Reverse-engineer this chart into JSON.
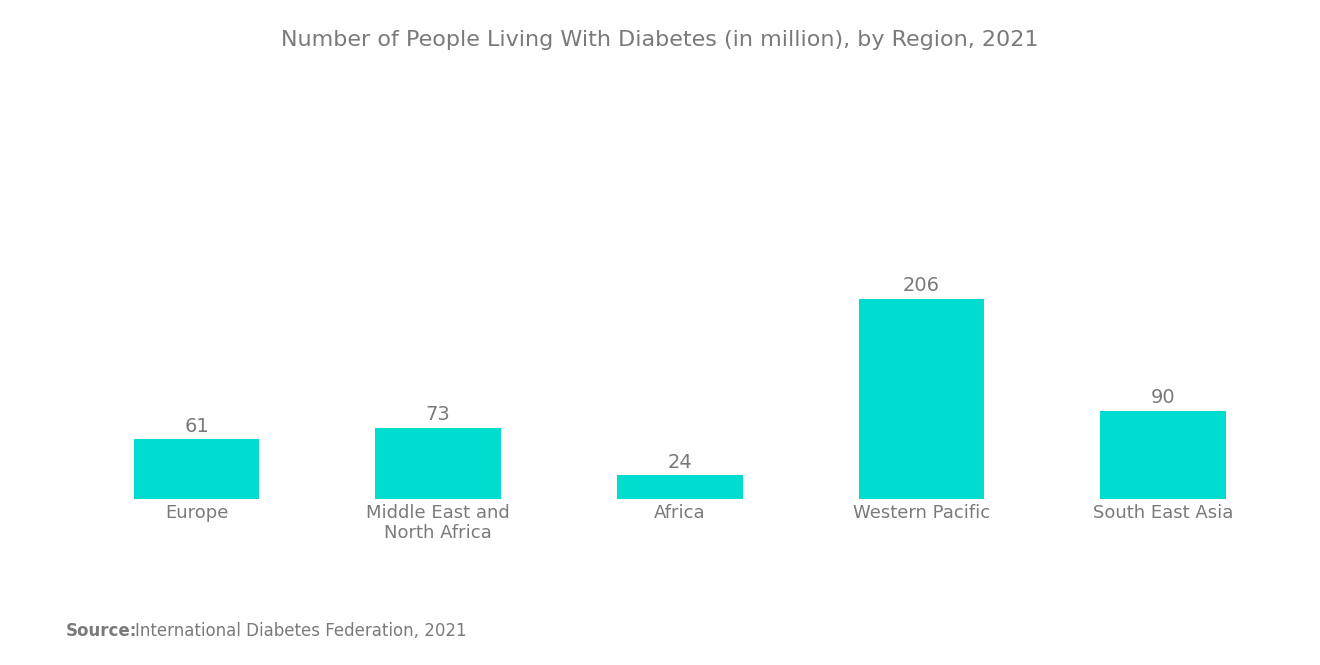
{
  "title": "Number of People Living With Diabetes (in million), by Region, 2021",
  "categories": [
    "Europe",
    "Middle East and\nNorth Africa",
    "Africa",
    "Western Pacific",
    "South East Asia"
  ],
  "values": [
    61,
    73,
    24,
    206,
    90
  ],
  "bar_color": "#00DDD0",
  "label_color": "#7a7a7a",
  "title_color": "#7a7a7a",
  "source_bold": "Source:",
  "source_text": "International Diabetes Federation, 2021",
  "background_color": "#ffffff",
  "ylim": [
    0,
    390
  ],
  "bar_width": 0.52,
  "title_fontsize": 16,
  "tick_fontsize": 13,
  "source_fontsize": 12,
  "value_fontsize": 14
}
